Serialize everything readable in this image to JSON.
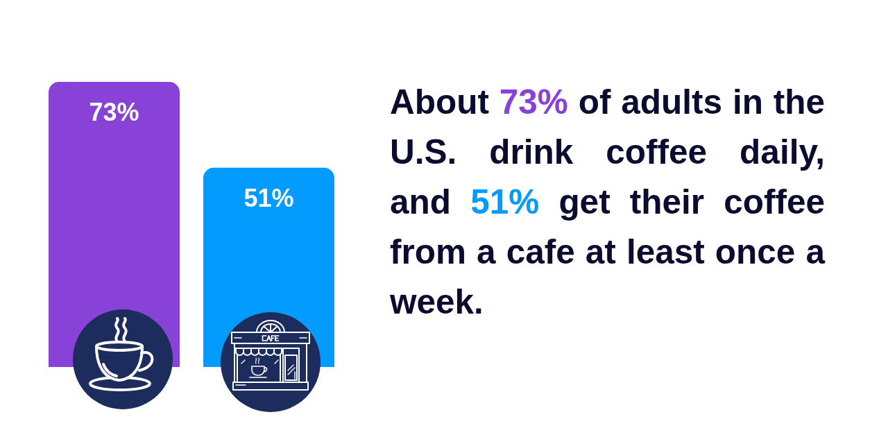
{
  "chart_data": {
    "type": "bar",
    "title": "About 73% of adults in the U.S. drink coffee daily, and 51% get their coffee from a cafe at least once a week.",
    "categories": [
      null,
      null
    ],
    "values": [
      73,
      51
    ],
    "colors": [
      "#8842d8",
      "#039bfe"
    ],
    "value_labels": [
      "73%",
      "51%"
    ],
    "tick_labels": false
  }
}
